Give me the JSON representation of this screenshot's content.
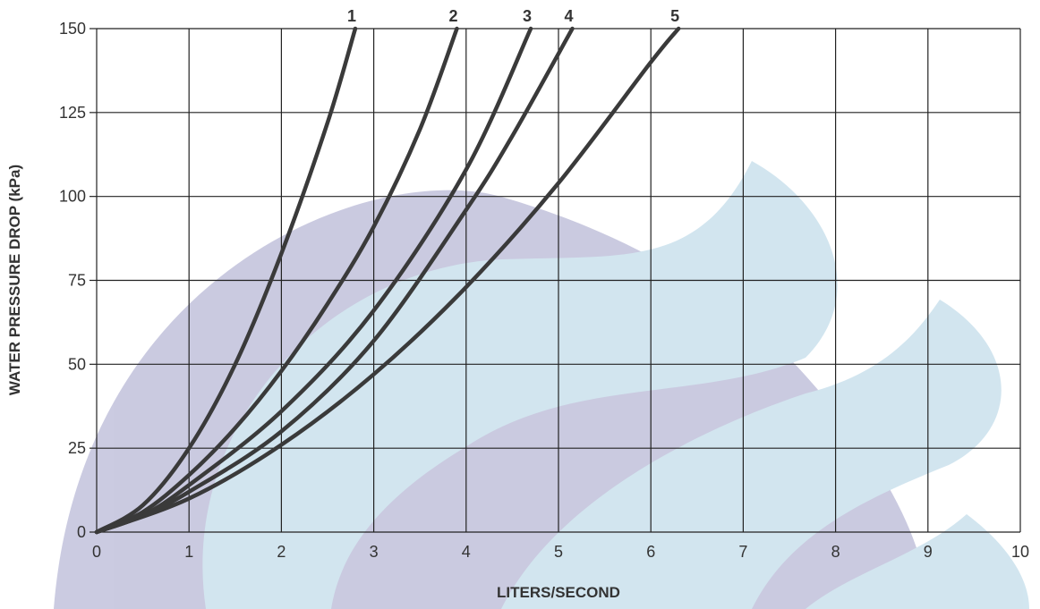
{
  "chart_data": {
    "type": "line",
    "xlabel": "LITERS/SECOND",
    "ylabel": "WATER PRESSURE DROP (kPa)",
    "xlim": [
      0,
      10
    ],
    "xticks": [
      0,
      1,
      2,
      3,
      4,
      5,
      6,
      7,
      8,
      9,
      10
    ],
    "ylim": [
      0,
      150
    ],
    "yticks": [
      0,
      25,
      50,
      75,
      100,
      125,
      150
    ],
    "grid": true,
    "series": [
      {
        "name": "1",
        "color": "#3a3a3a",
        "x": [
          0,
          0.5,
          1,
          1.5,
          2,
          2.5,
          2.8
        ],
        "values": [
          0,
          8,
          25,
          50,
          83,
          122,
          150
        ]
      },
      {
        "name": "2",
        "color": "#3a3a3a",
        "x": [
          0,
          0.5,
          1,
          1.5,
          2,
          2.5,
          3,
          3.5,
          3.9
        ],
        "values": [
          0,
          6,
          17,
          31,
          48,
          68,
          91,
          120,
          150
        ]
      },
      {
        "name": "3",
        "color": "#3a3a3a",
        "x": [
          0,
          0.5,
          1,
          2,
          3,
          4,
          4.7
        ],
        "values": [
          0,
          5,
          14,
          36,
          66,
          108,
          150
        ]
      },
      {
        "name": "4",
        "color": "#3a3a3a",
        "x": [
          0,
          0.5,
          1,
          2,
          3,
          4,
          4.5,
          5.15
        ],
        "values": [
          0,
          5,
          12,
          30,
          57,
          96,
          118,
          150
        ]
      },
      {
        "name": "5",
        "color": "#3a3a3a",
        "x": [
          0,
          1,
          2,
          3,
          4,
          5,
          6,
          6.3
        ],
        "values": [
          0,
          10,
          26,
          47,
          73,
          104,
          140,
          150
        ]
      }
    ]
  }
}
